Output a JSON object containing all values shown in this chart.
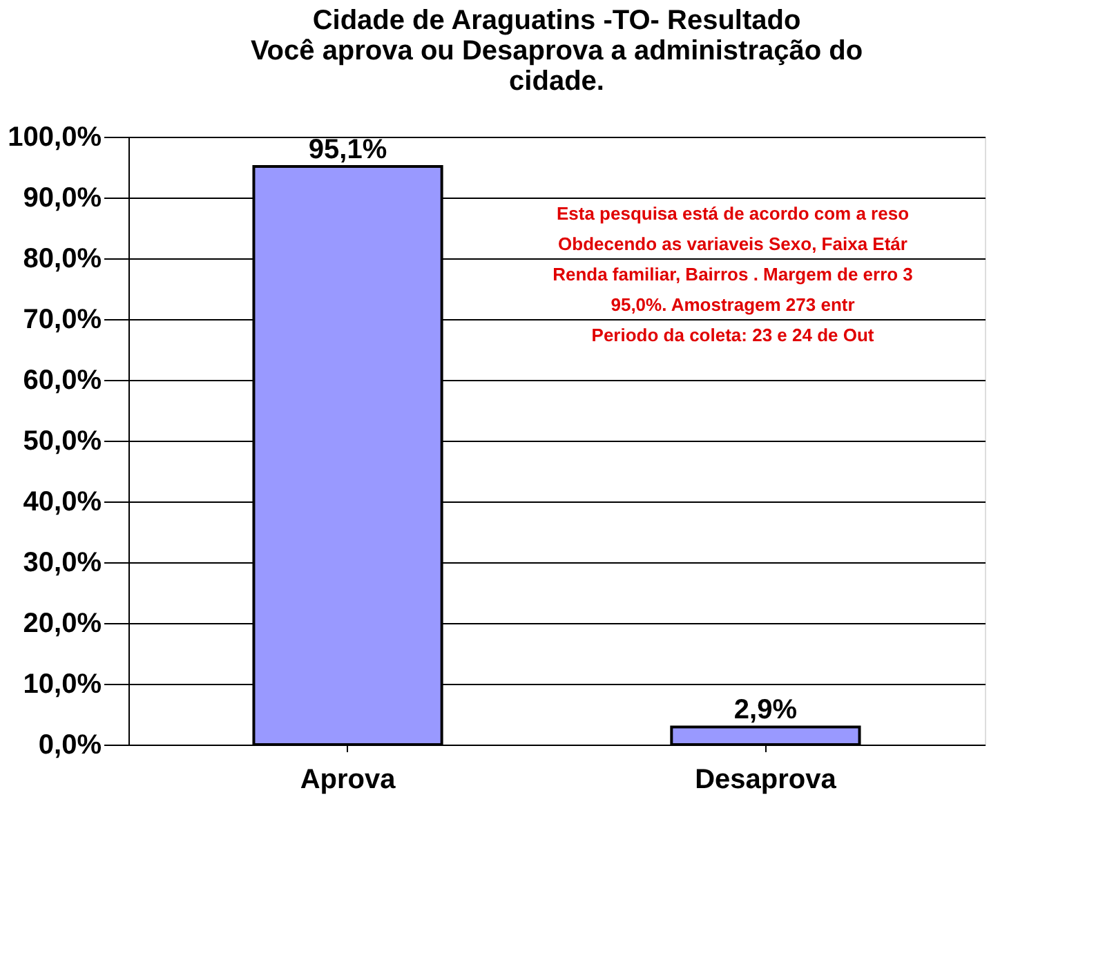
{
  "chart_data": {
    "type": "bar",
    "title": [
      "Cidade de Araguatins -TO- Resultado",
      "Você aprova ou Desaprova a administração do",
      "cidade."
    ],
    "categories": [
      "Aprova",
      "Desaprova"
    ],
    "values": [
      95.1,
      2.9
    ],
    "value_labels": [
      "95,1%",
      "2,9%"
    ],
    "color": "#9999ff",
    "ylim": [
      0,
      100
    ],
    "yticks": [
      {
        "value": 0,
        "label": "0,0%"
      },
      {
        "value": 10,
        "label": "10,0%"
      },
      {
        "value": 20,
        "label": "20,0%"
      },
      {
        "value": 30,
        "label": "30,0%"
      },
      {
        "value": 40,
        "label": "40,0%"
      },
      {
        "value": 50,
        "label": "50,0%"
      },
      {
        "value": 60,
        "label": "60,0%"
      },
      {
        "value": 70,
        "label": "70,0%"
      },
      {
        "value": 80,
        "label": "80,0%"
      },
      {
        "value": 90,
        "label": "90,0%"
      },
      {
        "value": 100,
        "label": "100,0%"
      }
    ],
    "grid": "y",
    "annotations": [
      "Esta pesquisa está de acordo com a reso\nObdecendo as variaveis Sexo, Faixa Etár\nRenda familiar, Bairros . Margem de erro 3\n95,0%. Amostragem 273 entr\nPeriodo da coleta: 23 e 24 de Out"
    ]
  }
}
